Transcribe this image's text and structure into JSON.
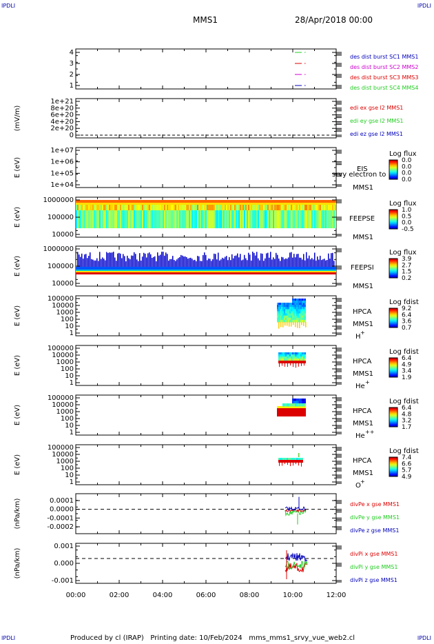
{
  "header": {
    "corner_left": "IPDLI",
    "corner_right": "IPDLI",
    "mission": "MMS1",
    "datetime": "28/Apr/2018 00:00"
  },
  "footer": {
    "corner_left": "IPDLI",
    "corner_right": "IPDLI",
    "produced_by": "Produced by cl (IRAP)",
    "printing_date": "Printing date: 10/Feb/2024",
    "filename": "mms_mms1_srvy_vue_web2.cl"
  },
  "colors": {
    "axis": "#000000",
    "red": "#dd0000",
    "green": "#22cc22",
    "blue": "#0000bb",
    "magenta": "#cc00cc"
  },
  "chart_data": [
    {
      "id": "des",
      "type": "line",
      "yticks": [
        "4",
        "3",
        "2",
        "1"
      ],
      "legend": [
        {
          "label": "des dist burst SC1 MMS1",
          "color": "#0000bb"
        },
        {
          "label": "des dist burst SC2 MMS2",
          "color": "#cc00cc"
        },
        {
          "label": "des dist burst SC3 MMS3",
          "color": "#dd0000"
        },
        {
          "label": "des dist burst SC4 MMS4",
          "color": "#22cc22"
        }
      ]
    },
    {
      "id": "edi",
      "type": "line",
      "ylabel": "(mV/m)",
      "yticks": [
        "1e+21",
        "8e+20",
        "6e+20",
        "4e+20",
        "2e+20",
        "0"
      ],
      "legend": [
        {
          "label": "edi ex gse l2 MMS1",
          "color": "#dd0000"
        },
        {
          "label": "edi ey gse l2 MMS1",
          "color": "#22cc22"
        },
        {
          "label": "edi ez gse l2 MMS1",
          "color": "#0000bb"
        }
      ]
    },
    {
      "id": "eis",
      "type": "heatmap",
      "ylabel": "E (eV)",
      "yticks": [
        "1e+07",
        "1e+06",
        "1e+05",
        "1e+04"
      ],
      "instrument": "EIS",
      "sc": "MMS1",
      "overlay": "srvy electron to",
      "cbar_title": "Log flux",
      "cbar_ticks": [
        "0.0",
        "0.0",
        "0.0",
        "0.0"
      ]
    },
    {
      "id": "feepse",
      "type": "heatmap",
      "ylabel": "E (eV)",
      "yticks": [
        "1000000",
        "100000",
        "10000"
      ],
      "instrument": "FEEPSE",
      "sc": "MMS1",
      "cbar_title": "Log flux",
      "cbar_ticks": [
        "1.0",
        "0.5",
        "0.0",
        "-0.5"
      ]
    },
    {
      "id": "feepsi",
      "type": "heatmap",
      "ylabel": "E (eV)",
      "yticks": [
        "1000000",
        "100000",
        "10000"
      ],
      "instrument": "FEEPSI",
      "sc": "MMS1",
      "cbar_title": "Log flux",
      "cbar_ticks": [
        "3.9",
        "2.7",
        "1.5",
        "0.2"
      ]
    },
    {
      "id": "hpca_h",
      "type": "heatmap",
      "ylabel": "E (eV)",
      "yticks": [
        "100000",
        "10000",
        "1000",
        "100",
        "10",
        "1"
      ],
      "instrument": "HPCA",
      "sc": "MMS1",
      "species": "H",
      "charge": "+",
      "cbar_title": "Log fdist",
      "cbar_ticks": [
        "9.2",
        "6.4",
        "3.6",
        "0.7"
      ]
    },
    {
      "id": "hpca_he1",
      "type": "heatmap",
      "ylabel": "E (eV)",
      "yticks": [
        "100000",
        "10000",
        "1000",
        "100",
        "10",
        "1"
      ],
      "instrument": "HPCA",
      "sc": "MMS1",
      "species": "He",
      "charge": "+",
      "cbar_title": "Log fdist",
      "cbar_ticks": [
        "6.4",
        "4.9",
        "3.4",
        "1.9"
      ]
    },
    {
      "id": "hpca_he2",
      "type": "heatmap",
      "ylabel": "E (eV)",
      "yticks": [
        "100000",
        "10000",
        "1000",
        "100",
        "10",
        "1"
      ],
      "instrument": "HPCA",
      "sc": "MMS1",
      "species": "He",
      "charge": "++",
      "cbar_title": "Log fdist",
      "cbar_ticks": [
        "6.4",
        "4.8",
        "3.2",
        "1.7"
      ]
    },
    {
      "id": "hpca_o",
      "type": "heatmap",
      "ylabel": "E (eV)",
      "yticks": [
        "100000",
        "10000",
        "1000",
        "100",
        "10",
        "1"
      ],
      "instrument": "HPCA",
      "sc": "MMS1",
      "species": "O",
      "charge": "+",
      "cbar_title": "Log fdist",
      "cbar_ticks": [
        "7.4",
        "6.6",
        "5.7",
        "4.9"
      ]
    },
    {
      "id": "divpe",
      "type": "line",
      "ylabel": "(nPa/km)",
      "yticks": [
        "0.0001",
        "0.0000",
        "-0.0001",
        "-0.0002"
      ],
      "legend": [
        {
          "label": "divPe x gse MMS1",
          "color": "#dd0000"
        },
        {
          "label": "divPe y gse MMS1",
          "color": "#22cc22"
        },
        {
          "label": "divPe z gse MMS1",
          "color": "#0000bb"
        }
      ]
    },
    {
      "id": "divpi",
      "type": "line",
      "ylabel": "(nPa/km)",
      "yticks": [
        "0.001",
        "0.000",
        "-0.001"
      ],
      "legend": [
        {
          "label": "divPi x gse MMS1",
          "color": "#dd0000"
        },
        {
          "label": "divPi y gse MMS1",
          "color": "#22cc22"
        },
        {
          "label": "divPi z gse MMS1",
          "color": "#0000bb"
        }
      ]
    }
  ],
  "time_axis": {
    "ticks": [
      "00:00",
      "02:00",
      "04:00",
      "06:00",
      "08:00",
      "10:00",
      "12:00"
    ],
    "range_hours": [
      0,
      12
    ]
  }
}
